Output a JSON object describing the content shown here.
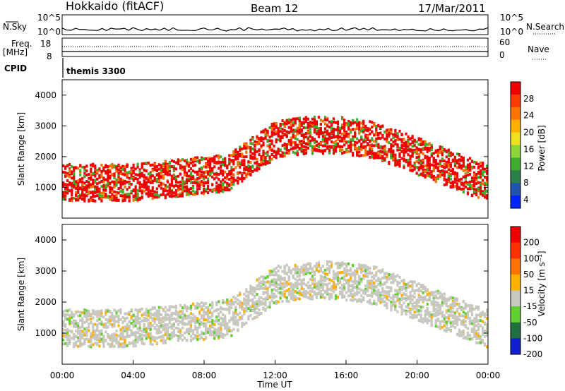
{
  "header": {
    "station": "Hokkaido (fitACF)",
    "beam": "Beam 12",
    "date": "17/Mar/2011"
  },
  "top_panels": {
    "nsky_label": "N.Sky",
    "nsearch_label": "N.Search",
    "nsky_ticks": [
      "10^5",
      "10^0"
    ],
    "freq_label_1": "Freq.",
    "freq_label_2": "[MHz]",
    "freq_ticks": [
      "18",
      "8"
    ],
    "nave_label": "Nave",
    "nave_ticks": [
      "60",
      "0"
    ],
    "cpid_label": "CPID",
    "cpid_value": "themis 3300"
  },
  "chart_data": [
    {
      "type": "heatmap",
      "name": "power",
      "ylabel": "Slant Range [km]",
      "xlabel": "",
      "x_ticks": [
        "00:00",
        "04:00",
        "08:00",
        "12:00",
        "16:00",
        "20:00",
        "00:00"
      ],
      "y_ticks": [
        1000,
        2000,
        3000,
        4000
      ],
      "ylim": [
        0,
        4500
      ],
      "colorbar_label": "Power [dB]",
      "colorbar_ticks": [
        28,
        24,
        20,
        16,
        12,
        8,
        4
      ],
      "colors": [
        "#0026ff",
        "#1f55b0",
        "#2a7f4a",
        "#3fae30",
        "#8bd43a",
        "#f0e020",
        "#ffb000",
        "#ff7400",
        "#ff3a00",
        "#f00000"
      ]
    },
    {
      "type": "heatmap",
      "name": "velocity",
      "ylabel": "Slant Range [km]",
      "xlabel": "Time UT",
      "x_ticks": [
        "00:00",
        "04:00",
        "08:00",
        "12:00",
        "16:00",
        "20:00",
        "00:00"
      ],
      "y_ticks": [
        1000,
        2000,
        3000,
        4000
      ],
      "ylim": [
        0,
        4500
      ],
      "colorbar_label": "Velocity [m s⁻¹]",
      "colorbar_ticks": [
        200,
        100,
        50,
        15,
        -15,
        -50,
        -100,
        -200
      ],
      "colors": [
        "#1020d0",
        "#207040",
        "#60d030",
        "#c8c8c0",
        "#ffb000",
        "#ff7400",
        "#ff3000",
        "#f00000"
      ]
    }
  ]
}
